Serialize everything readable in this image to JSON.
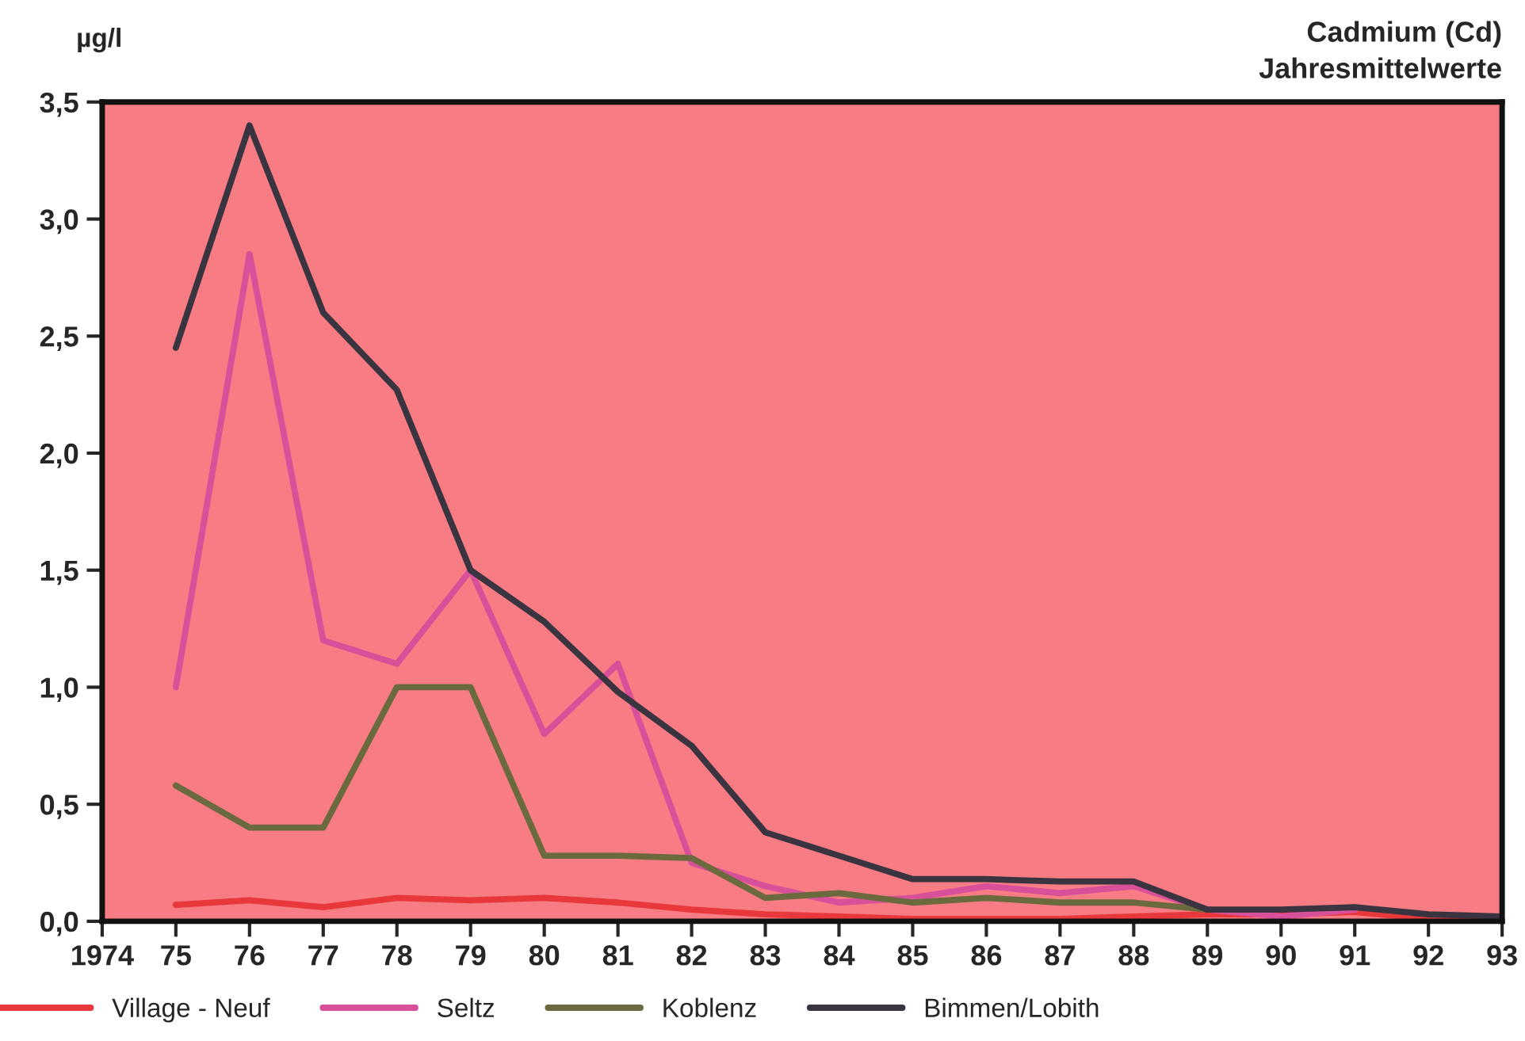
{
  "chart_data": {
    "type": "line",
    "title": "Cadmium (Cd)",
    "subtitle": "Jahresmittelwerte",
    "ylabel": "µg/l",
    "x": [
      1975,
      1976,
      1977,
      1978,
      1979,
      1980,
      1981,
      1982,
      1983,
      1984,
      1985,
      1986,
      1987,
      1988,
      1989,
      1990,
      1991,
      1992,
      1993
    ],
    "series": [
      {
        "name": "Village - Neuf",
        "color": "#e8383c",
        "values": [
          0.07,
          0.09,
          0.06,
          0.1,
          0.09,
          0.1,
          0.08,
          0.05,
          0.03,
          0.02,
          0.01,
          0.01,
          0.01,
          0.02,
          0.03,
          0.03,
          0.04,
          0.01,
          0.0
        ]
      },
      {
        "name": "Seltz",
        "color": "#d9509a",
        "values": [
          1.0,
          2.85,
          1.2,
          1.1,
          1.5,
          0.8,
          1.1,
          0.25,
          0.15,
          0.08,
          0.1,
          0.15,
          0.12,
          0.15,
          0.05,
          0.02,
          0.05,
          null,
          null
        ]
      },
      {
        "name": "Koblenz",
        "color": "#6b6a3e",
        "values": [
          0.58,
          0.4,
          0.4,
          1.0,
          1.0,
          0.28,
          0.28,
          0.27,
          0.1,
          0.12,
          0.08,
          0.1,
          0.08,
          0.08,
          0.05,
          null,
          null,
          null,
          null
        ]
      },
      {
        "name": "Bimmen/Lobith",
        "color": "#3a3440",
        "values": [
          2.45,
          3.4,
          2.6,
          2.27,
          1.5,
          1.28,
          0.98,
          0.75,
          0.38,
          0.28,
          0.18,
          0.18,
          0.17,
          0.17,
          0.05,
          0.05,
          0.06,
          0.03,
          0.02
        ]
      }
    ],
    "xlim": [
      1974,
      1993
    ],
    "ylim": [
      0,
      3.5
    ],
    "xticks": [
      1974,
      {
        "value": 1975,
        "label": "75"
      },
      {
        "value": 1976,
        "label": "76"
      },
      {
        "value": 1977,
        "label": "77"
      },
      {
        "value": 1978,
        "label": "78"
      },
      {
        "value": 1979,
        "label": "79"
      },
      {
        "value": 1980,
        "label": "80"
      },
      {
        "value": 1981,
        "label": "81"
      },
      {
        "value": 1982,
        "label": "82"
      },
      {
        "value": 1983,
        "label": "83"
      },
      {
        "value": 1984,
        "label": "84"
      },
      {
        "value": 1985,
        "label": "85"
      },
      {
        "value": 1986,
        "label": "86"
      },
      {
        "value": 1987,
        "label": "87"
      },
      {
        "value": 1988,
        "label": "88"
      },
      {
        "value": 1989,
        "label": "89"
      },
      {
        "value": 1990,
        "label": "90"
      },
      {
        "value": 1991,
        "label": "91"
      },
      {
        "value": 1992,
        "label": "92"
      },
      {
        "value": 1993,
        "label": "93"
      }
    ],
    "yticks": [
      {
        "value": 0,
        "label": "0,0"
      },
      {
        "value": 0.5,
        "label": "0,5"
      },
      {
        "value": 1.0,
        "label": "1,0"
      },
      {
        "value": 1.5,
        "label": "1,5"
      },
      {
        "value": 2.0,
        "label": "2,0"
      },
      {
        "value": 2.5,
        "label": "2,5"
      },
      {
        "value": 3.0,
        "label": "3,0"
      },
      {
        "value": 3.5,
        "label": "3,5"
      }
    ],
    "grid": false,
    "legend": "bottom",
    "line_style": "solid",
    "marker": "none"
  }
}
